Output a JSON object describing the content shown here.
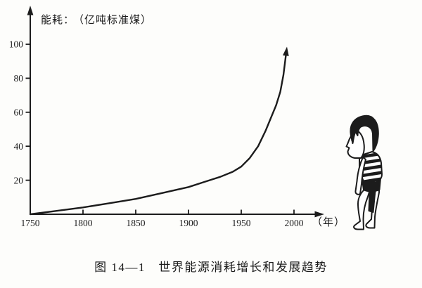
{
  "figure": {
    "caption": "图 14—1　世界能源消耗增长和发展趋势"
  },
  "chart_data": {
    "type": "line",
    "title": "图 14—1 世界能源消耗增长和发展趋势",
    "ylabel": "能耗：",
    "y_unit_label": "（亿吨标准煤）",
    "x_unit_label": "（年）",
    "x_ticks": [
      "1750",
      "1800",
      "1850",
      "1900",
      "1950",
      "2000"
    ],
    "y_ticks": [
      "20",
      "40",
      "60",
      "80",
      "100"
    ],
    "series": [
      {
        "name": "世界能源消耗",
        "x": [
          1750,
          1775,
          1800,
          1825,
          1850,
          1875,
          1900,
          1915,
          1930,
          1942,
          1950,
          1958,
          1966,
          1973,
          1979,
          1983,
          1987,
          1990,
          1992
        ],
        "values": [
          0,
          2,
          4,
          6.5,
          9,
          12.5,
          16,
          19,
          22,
          25,
          28,
          33,
          40,
          49,
          58,
          64,
          72,
          82,
          92
        ]
      }
    ],
    "xlim": [
      1750,
      2030
    ],
    "ylim": [
      0,
      110
    ],
    "grid": false,
    "legend": "none",
    "curve_ends_with_arrow": true
  },
  "illustration": {
    "icon": "child-watching-chart-icon"
  },
  "colors": {
    "ink": "#1c1c1c",
    "background": "#fdfdfb"
  }
}
